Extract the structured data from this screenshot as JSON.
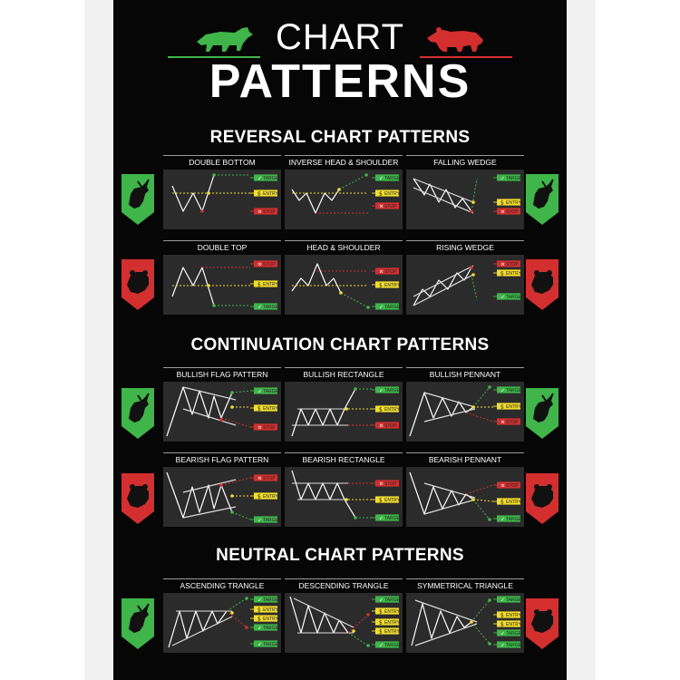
{
  "title": {
    "line1": "CHART",
    "line2": "PATTERNS"
  },
  "colors": {
    "bull": "#3fb54a",
    "bear": "#d32f2f",
    "entry": "#f2dc2c",
    "background": "#060606",
    "tile": "#2b2b2b"
  },
  "labels": {
    "target": "TARGET",
    "entry": "ENTRY",
    "stop": "STOP"
  },
  "sections": {
    "reversal": {
      "heading": "REVERSAL CHART PATTERNS",
      "patterns": [
        {
          "name": "DOUBLE BOTTOM"
        },
        {
          "name": "INVERSE HEAD & SHOULDER"
        },
        {
          "name": "FALLING WEDGE"
        },
        {
          "name": "DOUBLE TOP"
        },
        {
          "name": "HEAD & SHOULDER"
        },
        {
          "name": "RISING WEDGE"
        }
      ]
    },
    "continuation": {
      "heading": "CONTINUATION CHART PATTERNS",
      "patterns": [
        {
          "name": "BULLISH FLAG PATTERN"
        },
        {
          "name": "BULLISH RECTANGLE"
        },
        {
          "name": "BULLISH PENNANT"
        },
        {
          "name": "BEARISH FLAG PATTERN"
        },
        {
          "name": "BEARISH RECTANGLE"
        },
        {
          "name": "BEARISH PENNANT"
        }
      ]
    },
    "neutral": {
      "heading": "NEUTRAL CHART PATTERNS",
      "patterns": [
        {
          "name": "ASCENDING TRANGLE"
        },
        {
          "name": "DESCENDING TRANGLE"
        },
        {
          "name": "SYMMETRICAL TRIANGLE"
        }
      ]
    }
  }
}
